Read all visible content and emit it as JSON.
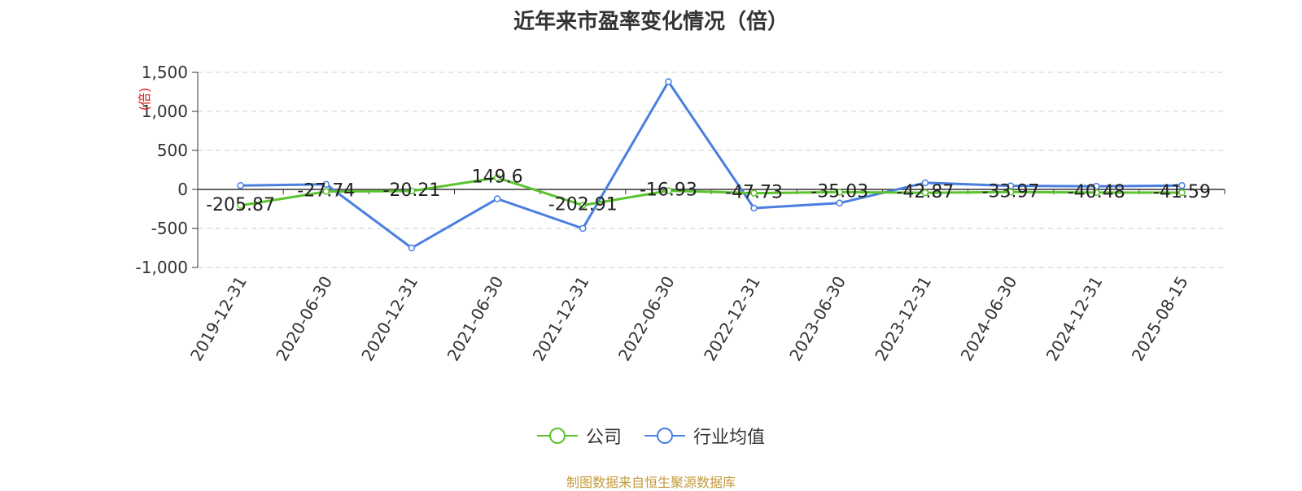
{
  "title": "近年来市盈率变化情况（倍）",
  "unit_label": "(倍)",
  "source_note": "制图数据来自恒生聚源数据库",
  "colors": {
    "company": "#5bc32d",
    "industry": "#4a7fe0",
    "unit": "#e02020"
  },
  "chart_data": {
    "type": "line",
    "title": "近年来市盈率变化情况（倍）",
    "ylabel": "(倍)",
    "categories": [
      "2019-12-31",
      "2020-06-30",
      "2020-12-31",
      "2021-06-30",
      "2021-12-31",
      "2022-06-30",
      "2022-12-31",
      "2023-06-30",
      "2023-12-31",
      "2024-06-30",
      "2024-12-31",
      "2025-08-15"
    ],
    "ylim": [
      -1000,
      1500
    ],
    "yticks": [
      -1000,
      -500,
      0,
      500,
      1000,
      1500
    ],
    "ytick_labels": [
      "-1,000",
      "-500",
      "0",
      "500",
      "1,000",
      "1,500"
    ],
    "grid": true,
    "legend": "bottom-center",
    "series": [
      {
        "name": "公司",
        "values": [
          -205.87,
          -27.74,
          -20.21,
          149.6,
          -202.91,
          -16.93,
          -47.73,
          -35.03,
          -42.87,
          -33.97,
          -40.48,
          -41.59
        ],
        "labels": [
          "-205.87",
          "-27.74",
          "-20.21",
          "149.6",
          "-202.91",
          "-16.93",
          "-47.73",
          "-35.03",
          "-42.87",
          "-33.97",
          "-40.48",
          "-41.59"
        ]
      },
      {
        "name": "行业均值",
        "values": [
          50,
          65,
          -750,
          -120,
          -500,
          1380,
          -240,
          -175,
          85,
          45,
          40,
          50
        ]
      }
    ]
  }
}
